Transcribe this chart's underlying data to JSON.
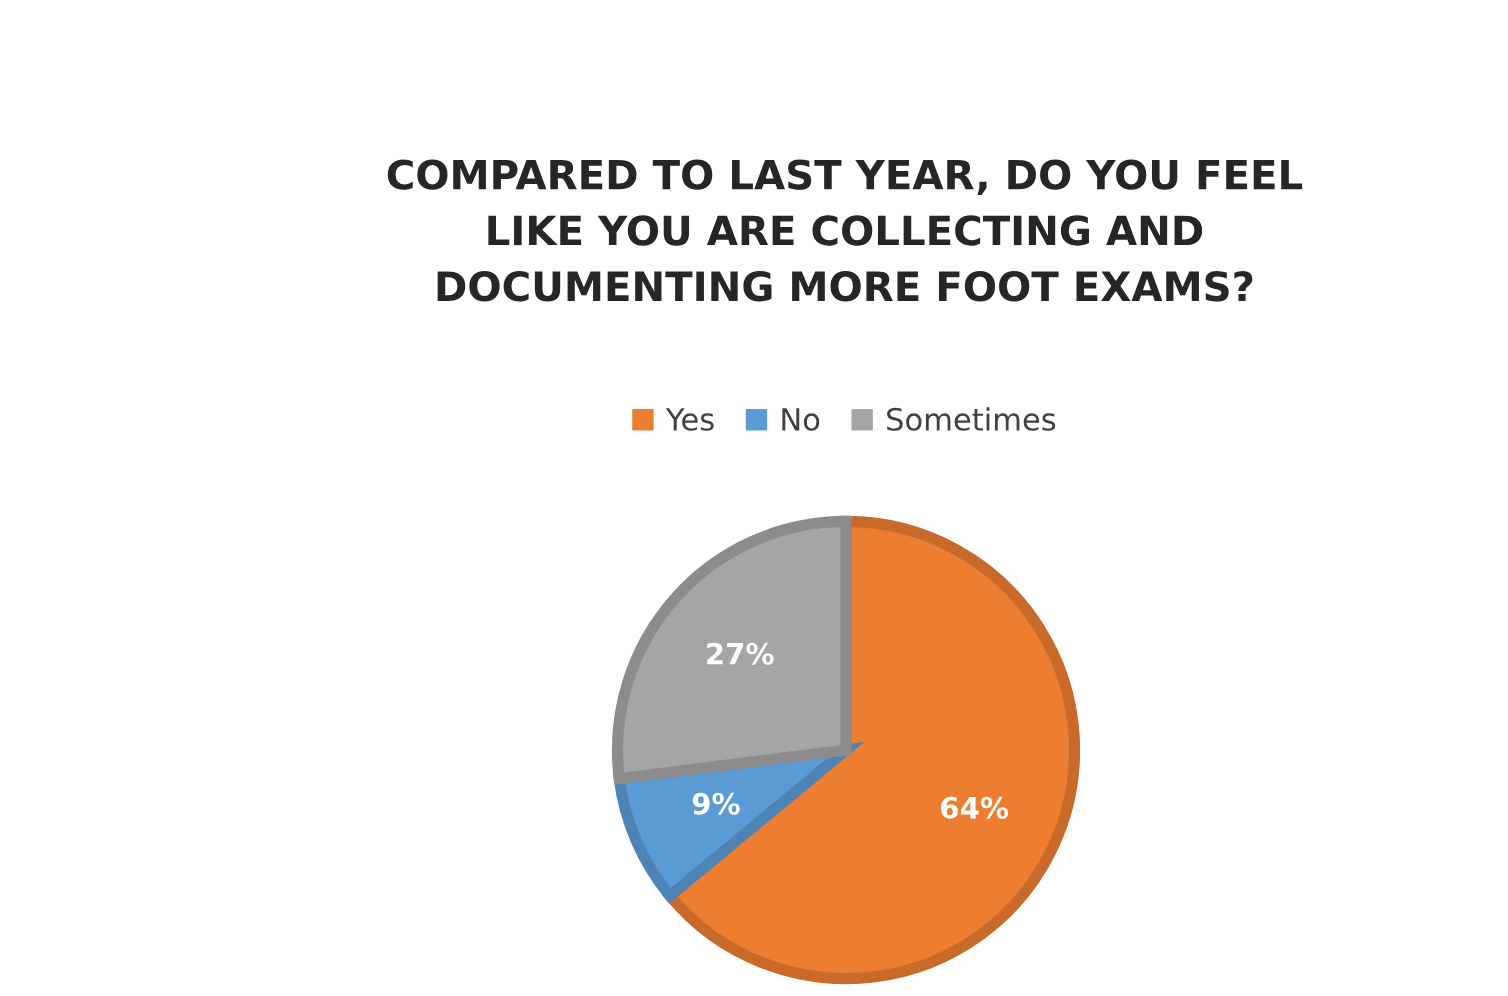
{
  "chart_data": {
    "type": "pie",
    "title": "COMPARED TO LAST YEAR, DO YOU FEEL\nLIKE YOU ARE COLLECTING AND\nDOCUMENTING MORE FOOT EXAMS?",
    "categories": [
      "Yes",
      "No",
      "Sometimes"
    ],
    "values": [
      64,
      9,
      27
    ],
    "colors": [
      "#ed7d31",
      "#5b9bd5",
      "#a5a5a5"
    ],
    "value_labels": [
      "64%",
      "9%",
      "27%"
    ],
    "legend": "top"
  }
}
